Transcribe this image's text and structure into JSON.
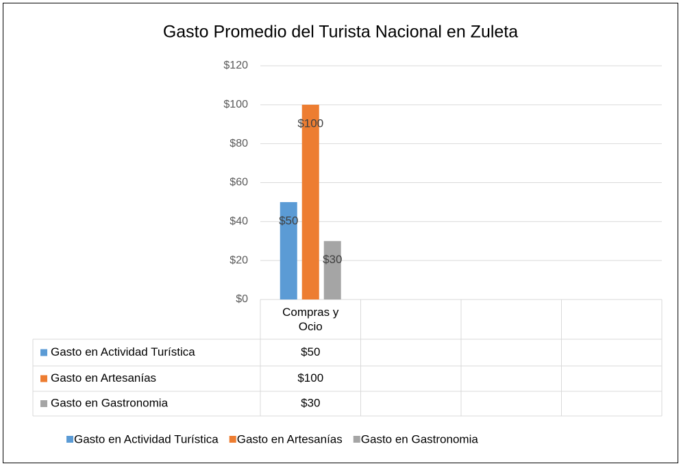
{
  "chart_data": {
    "type": "bar",
    "title": "Gasto Promedio del Turista Nacional en Zuleta",
    "categories": [
      "Compras y Ocio",
      null,
      null,
      null
    ],
    "series": [
      {
        "name": "Gasto en Actividad Turística",
        "color": "#5b9bd5",
        "values": [
          50,
          null,
          null,
          null
        ],
        "value_labels": [
          "$50",
          null,
          null,
          null
        ]
      },
      {
        "name": "Gasto en Artesanías",
        "color": "#ed7d31",
        "values": [
          100,
          null,
          null,
          null
        ],
        "value_labels": [
          "$100",
          null,
          null,
          null
        ]
      },
      {
        "name": "Gasto en Gastronomia",
        "color": "#a5a5a5",
        "values": [
          30,
          null,
          null,
          null
        ],
        "value_labels": [
          "$30",
          null,
          null,
          null
        ]
      }
    ],
    "ylim": [
      0,
      120
    ],
    "yticks": [
      {
        "value": 0,
        "label": "$0"
      },
      {
        "value": 20,
        "label": "$20"
      },
      {
        "value": 40,
        "label": "$40"
      },
      {
        "value": 60,
        "label": "$60"
      },
      {
        "value": 80,
        "label": "$80"
      },
      {
        "value": 100,
        "label": "$100"
      },
      {
        "value": 120,
        "label": "$120"
      }
    ],
    "grid": true,
    "legend": "bottom",
    "data_table": true
  }
}
